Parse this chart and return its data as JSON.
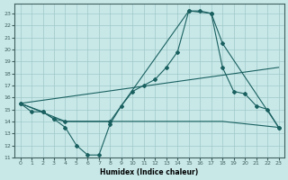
{
  "xlabel": "Humidex (Indice chaleur)",
  "background_color": "#c8e8e8",
  "grid_color": "#a0c8c8",
  "line_color": "#1a6060",
  "xlim": [
    -0.5,
    23.5
  ],
  "ylim": [
    11,
    23.8
  ],
  "yticks": [
    11,
    12,
    13,
    14,
    15,
    16,
    17,
    18,
    19,
    20,
    21,
    22,
    23
  ],
  "xticks": [
    0,
    1,
    2,
    3,
    4,
    5,
    6,
    7,
    8,
    9,
    10,
    11,
    12,
    13,
    14,
    15,
    16,
    17,
    18,
    19,
    20,
    21,
    22,
    23
  ],
  "line1_x": [
    0,
    1,
    2,
    3,
    4,
    5,
    6,
    7,
    8,
    9,
    10,
    11,
    12,
    13,
    14,
    15,
    16,
    17,
    18,
    19,
    20,
    21,
    22,
    23
  ],
  "line1_y": [
    15.5,
    14.8,
    14.8,
    14.2,
    13.5,
    12.0,
    11.2,
    11.2,
    13.8,
    15.3,
    16.5,
    17.0,
    17.5,
    18.5,
    19.8,
    23.2,
    23.2,
    23.0,
    18.5,
    16.5,
    16.3,
    15.3,
    15.0,
    13.5
  ],
  "line2_x": [
    0,
    2,
    3,
    4,
    8,
    15,
    17,
    18,
    23
  ],
  "line2_y": [
    15.5,
    14.8,
    14.2,
    14.0,
    14.0,
    23.2,
    23.0,
    20.5,
    13.5
  ],
  "line3_x": [
    0,
    23
  ],
  "line3_y": [
    15.5,
    18.5
  ],
  "line4_x": [
    0,
    4,
    18,
    23
  ],
  "line4_y": [
    15.5,
    14.0,
    14.0,
    13.5
  ]
}
